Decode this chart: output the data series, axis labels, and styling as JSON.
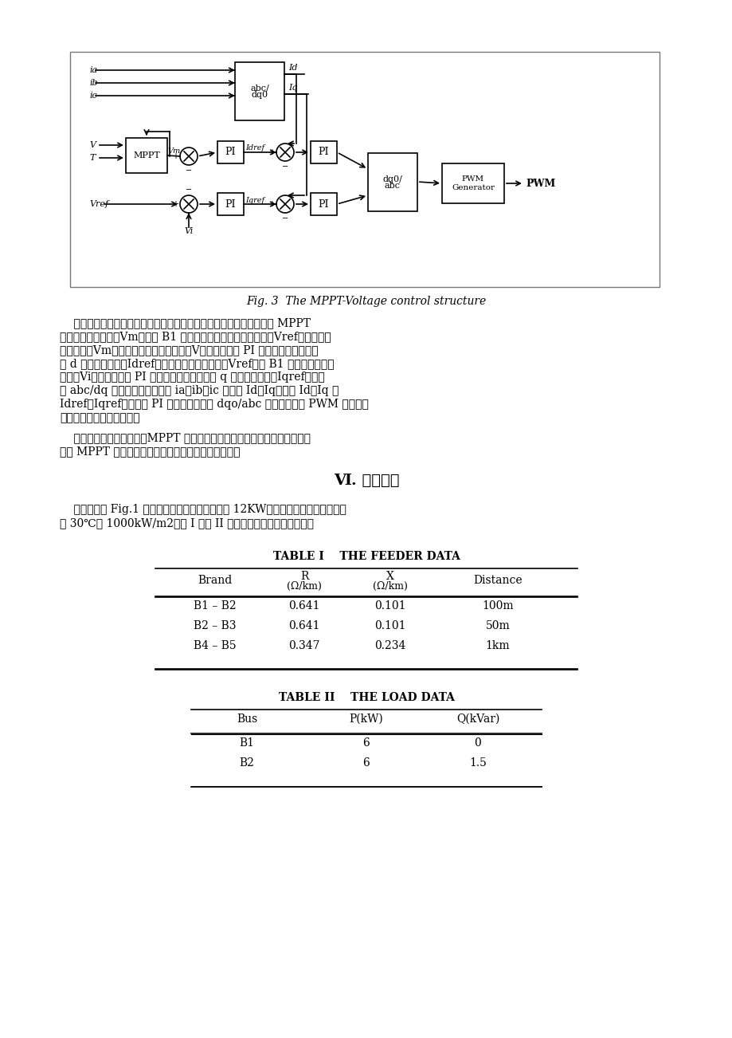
{
  "page_bg": "#ffffff",
  "fig_width": 9.2,
  "fig_height": 13.02,
  "margin_color": "#dddddd",
  "fig_caption": "Fig. 3  The MPPT-Voltage control structure",
  "paragraph1": "    采用双闭环反馈控制策略，外环为电压环，内环是并网电流环，通过 MPPT 算法给出参考电压（Vm），而 B1 的电压作为交流电的参考电压（Vref）。给出的参考电压（Vm）于实际的光伏阵列电压（V）的偏差经过 PI 控制，作为并网电流的 d 轴的参考电流（Idref）。交流电的参考电压（Vref）与 B1 点的实际的交流电压（Vi）的偏差经过 PI 控制，作为并网电流的 q 轴的参考电流（Iqref）。通过 abc/dq 变换，三相并网电流 ia、ib、ic 变换为 Id、Iq，比较 Id、Iq 和 Idref、Iqref，也通过 PI 控制调节。通过 dqo/abc 变换，输出的 PWM 信号是调制波和三角波比较产生的。",
  "paragraph2": "    从控制结构看，它表明，MPPT 的电压控制，不仅可以实现光伏电网连接的发电 MPPT 功能，而且还保持交流注入点的电压稳定。",
  "section_title": "Ⅵ. 数值研究",
  "paragraph3": "    仿真情况如 Fig.1 所示。光伏阵列的参考功率是 12KW，根据环境温度和日照强度为 30℃和 1000kW/m2。表 I 和表 II 分别给出了馈线和负载数据。",
  "table1_title": "TABLE I    THE FEEDER DATA",
  "table1_headers": [
    "Brand",
    "R\n(Ω/km)",
    "X\n(Ω/km)",
    "Distance"
  ],
  "table1_rows": [
    [
      "B1 – B2",
      "0.641",
      "0.101",
      "100m"
    ],
    [
      "B2 – B3",
      "0.641",
      "0.101",
      "50m"
    ],
    [
      "B4 – B5",
      "0.347",
      "0.234",
      "1km"
    ]
  ],
  "table2_title": "TABLE II    THE LOAD DATA",
  "table2_headers": [
    "Bus",
    "P(kW)",
    "Q(kVar)"
  ],
  "table2_rows": [
    [
      "B1",
      "6",
      "0"
    ],
    [
      "B2",
      "6",
      "1.5"
    ]
  ]
}
